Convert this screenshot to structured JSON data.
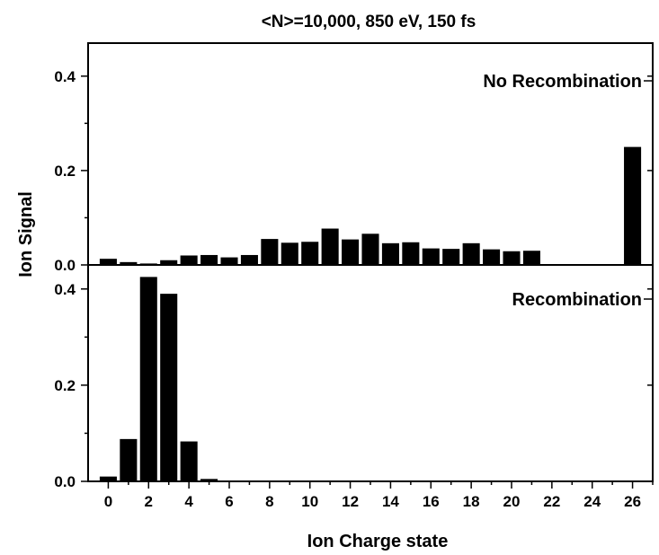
{
  "chart_data": {
    "type": "bar",
    "title": "<N>=10,000, 850 eV, 150 fs",
    "xlabel": "Ion Charge state",
    "ylabel": "Ion Signal",
    "xlim": [
      -1,
      27
    ],
    "xticks": [
      0,
      2,
      4,
      6,
      8,
      10,
      12,
      14,
      16,
      18,
      20,
      22,
      24,
      26
    ],
    "panels": [
      {
        "label": "No Recombination",
        "ylim": [
          0,
          0.47
        ],
        "yticks": [
          "0.0",
          "0.2",
          "0.4"
        ],
        "ytick_values": [
          0.0,
          0.2,
          0.4
        ],
        "x": [
          0,
          1,
          2,
          3,
          4,
          5,
          6,
          7,
          8,
          9,
          10,
          11,
          12,
          13,
          14,
          15,
          16,
          17,
          18,
          19,
          20,
          21,
          26
        ],
        "values": [
          0.013,
          0.006,
          0.003,
          0.01,
          0.02,
          0.021,
          0.016,
          0.021,
          0.055,
          0.047,
          0.049,
          0.077,
          0.054,
          0.066,
          0.046,
          0.048,
          0.035,
          0.034,
          0.046,
          0.033,
          0.029,
          0.03,
          0.25
        ]
      },
      {
        "label": "Recombination",
        "ylim": [
          0,
          0.45
        ],
        "yticks": [
          "0.0",
          "0.2",
          "0.4"
        ],
        "ytick_values": [
          0.0,
          0.2,
          0.4
        ],
        "x": [
          0,
          1,
          2,
          3,
          4,
          5
        ],
        "values": [
          0.01,
          0.088,
          0.425,
          0.39,
          0.083,
          0.005
        ]
      }
    ]
  }
}
